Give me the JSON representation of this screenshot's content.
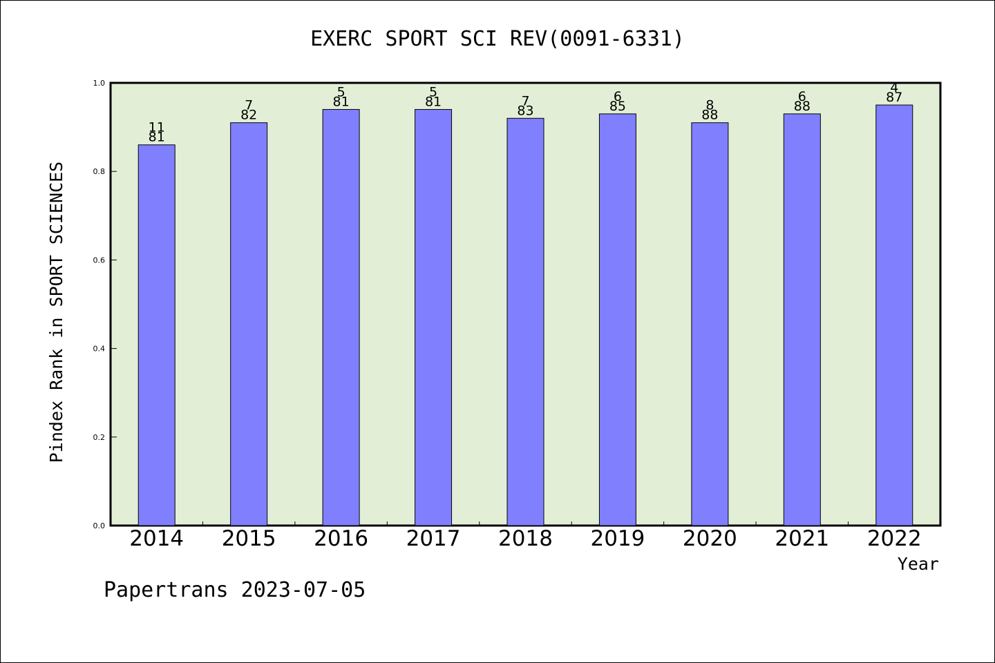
{
  "chart_data": {
    "type": "bar",
    "title": "EXERC SPORT SCI REV(0091-6331)",
    "xlabel": "Year",
    "ylabel": "Pindex Rank in SPORT SCIENCES",
    "ylim": [
      0,
      1.0
    ],
    "yticks": [
      "0.0",
      "0.2",
      "0.4",
      "0.6",
      "0.8",
      "1.0"
    ],
    "categories": [
      "2014",
      "2015",
      "2016",
      "2017",
      "2018",
      "2019",
      "2020",
      "2021",
      "2022"
    ],
    "values": [
      0.86,
      0.91,
      0.94,
      0.94,
      0.92,
      0.93,
      0.91,
      0.93,
      0.95
    ],
    "rank_labels": [
      "11",
      "7",
      "5",
      "5",
      "7",
      "6",
      "8",
      "6",
      "4"
    ],
    "total_labels": [
      "81",
      "82",
      "81",
      "81",
      "83",
      "85",
      "88",
      "88",
      "87"
    ],
    "grid": false,
    "footer": "Papertrans 2023-07-05",
    "colors": {
      "bar": "#8080ff",
      "plot_background": "#e2efd6",
      "axis": "#000000"
    }
  }
}
